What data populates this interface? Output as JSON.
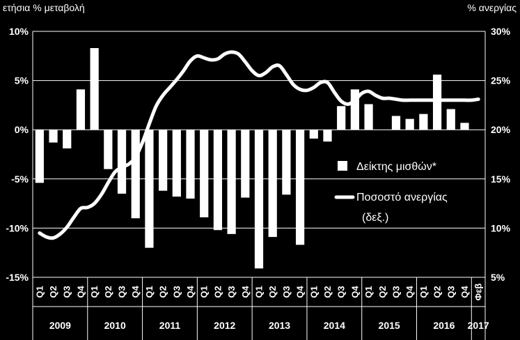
{
  "chart_data": {
    "type": "bar",
    "ylabel_left": "ετήσια % μεταβολή",
    "ylabel_right": "% ανεργίας",
    "yticks_left": [
      "10%",
      "5%",
      "0%",
      "-5%",
      "-10%",
      "-15%"
    ],
    "yticks_right": [
      "30%",
      "25%",
      "20%",
      "15%",
      "10%",
      "5%"
    ],
    "ylim_left": [
      -15,
      10
    ],
    "ylim_right": [
      5,
      30
    ],
    "quarters": [
      "Q1",
      "Q2",
      "Q3",
      "Q4",
      "Q1",
      "Q2",
      "Q3",
      "Q4",
      "Q1",
      "Q2",
      "Q3",
      "Q4",
      "Q1",
      "Q2",
      "Q3",
      "Q4",
      "Q1",
      "Q2",
      "Q3",
      "Q4",
      "Q1",
      "Q2",
      "Q3",
      "Q4",
      "Q1",
      "Q2",
      "Q3",
      "Q4",
      "Q1",
      "Q2",
      "Q3",
      "Q4",
      "Φεβ"
    ],
    "years": [
      {
        "label": "2009",
        "span": 4
      },
      {
        "label": "2010",
        "span": 4
      },
      {
        "label": "2011",
        "span": 4
      },
      {
        "label": "2012",
        "span": 4
      },
      {
        "label": "2013",
        "span": 4
      },
      {
        "label": "2014",
        "span": 4
      },
      {
        "label": "2015",
        "span": 4
      },
      {
        "label": "2016",
        "span": 4
      },
      {
        "label": "2017",
        "span": 1
      }
    ],
    "series": [
      {
        "name": "Δείκτης μισθών*",
        "kind": "bar",
        "axis": "left",
        "values": [
          -5.4,
          -1.3,
          -1.9,
          4.1,
          8.3,
          -4.0,
          -6.5,
          -9.0,
          -12.0,
          -6.2,
          -6.8,
          -7.0,
          -8.9,
          -10.2,
          -10.6,
          -6.9,
          -14.1,
          -10.9,
          -6.6,
          -11.7,
          -0.9,
          -1.2,
          2.4,
          4.1,
          2.6,
          0.0,
          1.4,
          1.1,
          1.6,
          5.6,
          2.1,
          0.7,
          null
        ]
      },
      {
        "name": "Ποσοστό ανεργίας (δεξ.)",
        "name_line1": "Ποσοστό ανεργίας",
        "name_line2": "(δεξ.)",
        "kind": "line",
        "axis": "right",
        "x": [
          0,
          0.5,
          1,
          1.5,
          2,
          2.5,
          3,
          3.5,
          4,
          4.5,
          5,
          5.5,
          6,
          6.5,
          7,
          7.5,
          8,
          8.5,
          9,
          9.5,
          10,
          10.5,
          11,
          11.5,
          12,
          12.5,
          13,
          13.5,
          14,
          14.5,
          15,
          15.5,
          16,
          16.5,
          17,
          17.5,
          18,
          18.5,
          19,
          19.5,
          20,
          20.5,
          21,
          21.5,
          22,
          22.5,
          23,
          23.5,
          24,
          24.5,
          25,
          25.5,
          26,
          26.5,
          27,
          27.5,
          28,
          28.5,
          29,
          29.5,
          30,
          30.5,
          31,
          31.5,
          32
        ],
        "values": [
          9.5,
          9.1,
          9.0,
          9.4,
          10.1,
          11.1,
          12.0,
          12.1,
          12.5,
          13.4,
          14.6,
          15.7,
          16.2,
          16.5,
          17.2,
          18.7,
          20.6,
          22.4,
          23.5,
          24.3,
          25.1,
          26.0,
          27.0,
          27.5,
          27.3,
          27.1,
          27.2,
          27.7,
          27.9,
          27.7,
          26.9,
          26.0,
          25.5,
          25.8,
          26.4,
          26.5,
          25.6,
          24.6,
          24.1,
          24.0,
          24.3,
          24.8,
          24.8,
          23.8,
          22.9,
          22.6,
          23.0,
          23.7,
          23.9,
          23.5,
          23.2,
          23.2,
          23.1,
          23.0,
          23.0,
          23.0,
          23.0,
          23.0,
          23.0,
          23.0,
          23.0,
          23.0,
          23.0,
          23.0,
          23.1
        ]
      }
    ]
  }
}
